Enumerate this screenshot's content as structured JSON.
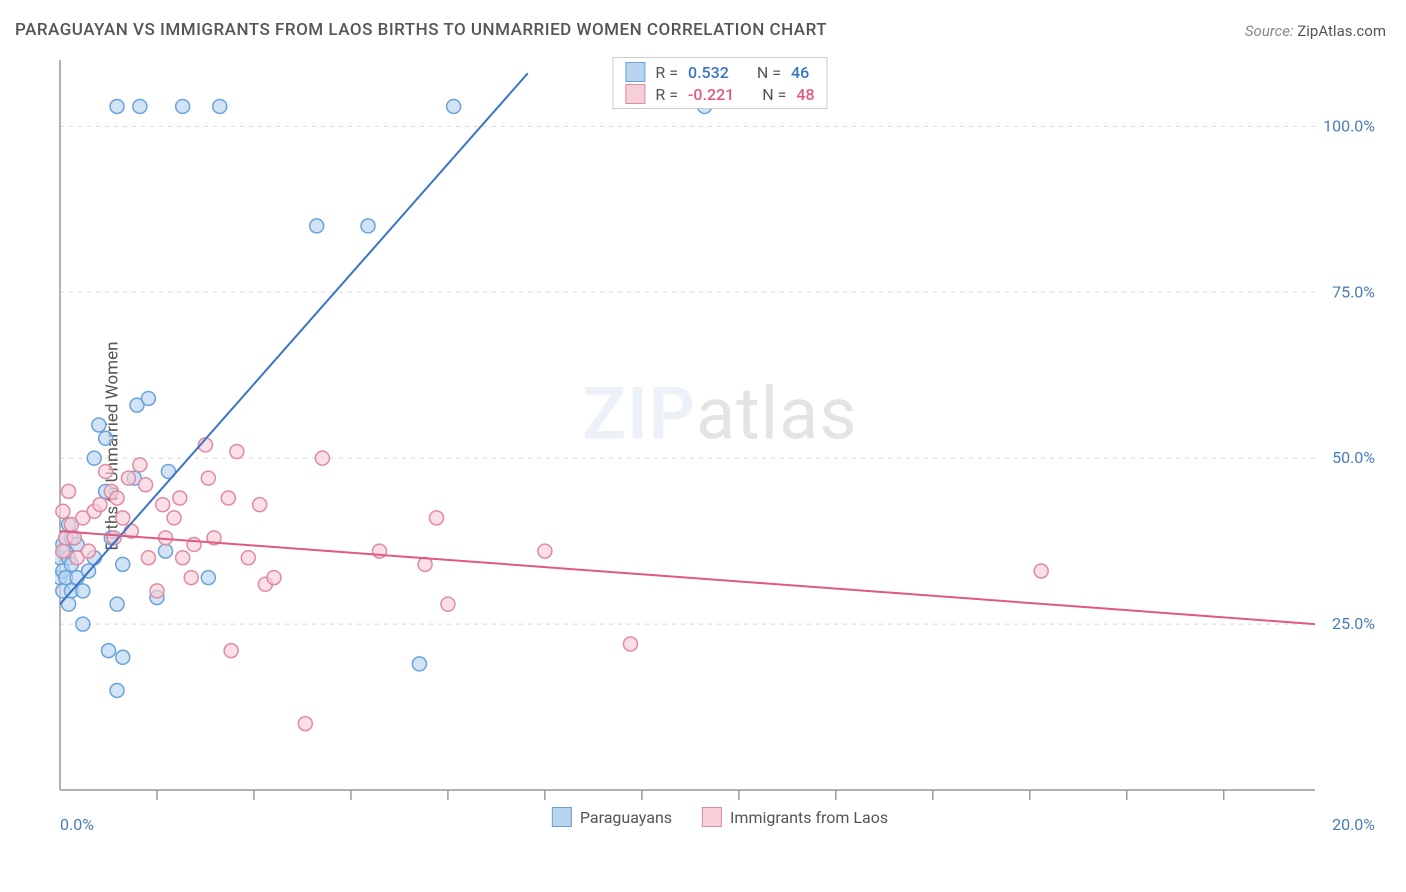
{
  "title": "PARAGUAYAN VS IMMIGRANTS FROM LAOS BIRTHS TO UNMARRIED WOMEN CORRELATION CHART",
  "source_label": "Source:",
  "source_value": "ZipAtlas.com",
  "ylabel": "Births to Unmarried Women",
  "watermark_a": "ZIP",
  "watermark_b": "atlas",
  "chart": {
    "type": "scatter",
    "xlim": [
      0,
      22
    ],
    "ylim": [
      0,
      110
    ],
    "ytick_values": [
      25,
      50,
      75,
      100
    ],
    "ytick_labels": [
      "25.0%",
      "50.0%",
      "75.0%",
      "100.0%"
    ],
    "x_origin_label": "0.0%",
    "x_end_label": "20.0%",
    "xtick_positions": [
      1.7,
      3.4,
      5.1,
      6.8,
      8.5,
      10.2,
      11.9,
      13.6,
      15.3,
      17.0,
      18.7,
      20.4
    ],
    "grid_color": "#d8d8d8",
    "axis_color": "#999999",
    "tick_label_color": "#4a7db8",
    "tick_label_fontsize": 16,
    "background_color": "#ffffff",
    "series": [
      {
        "name": "Paraguayans",
        "color_fill": "#b8d4ef",
        "color_stroke": "#6aa3d9",
        "line_color": "#3a74c4",
        "r_label": "R =",
        "r_value": "0.532",
        "n_label": "N =",
        "n_value": "46",
        "regression": {
          "x1": 0,
          "y1": 28,
          "x2": 8.2,
          "y2": 108
        },
        "points": [
          [
            0.0,
            35
          ],
          [
            0.0,
            32
          ],
          [
            0.05,
            37
          ],
          [
            0.05,
            33
          ],
          [
            0.05,
            30
          ],
          [
            0.1,
            38
          ],
          [
            0.1,
            36
          ],
          [
            0.1,
            32
          ],
          [
            0.15,
            40
          ],
          [
            0.15,
            35
          ],
          [
            0.15,
            28
          ],
          [
            0.2,
            38
          ],
          [
            0.2,
            34
          ],
          [
            0.2,
            30
          ],
          [
            0.3,
            37
          ],
          [
            0.3,
            32
          ],
          [
            0.4,
            30
          ],
          [
            0.4,
            25
          ],
          [
            0.5,
            33
          ],
          [
            0.6,
            50
          ],
          [
            0.6,
            35
          ],
          [
            0.68,
            55
          ],
          [
            0.8,
            53
          ],
          [
            0.8,
            45
          ],
          [
            0.85,
            21
          ],
          [
            0.9,
            38
          ],
          [
            1.0,
            28
          ],
          [
            1.0,
            103
          ],
          [
            1.0,
            15
          ],
          [
            1.1,
            34
          ],
          [
            1.1,
            20
          ],
          [
            1.3,
            47
          ],
          [
            1.35,
            58
          ],
          [
            1.4,
            103
          ],
          [
            1.55,
            59
          ],
          [
            1.7,
            29
          ],
          [
            1.85,
            36
          ],
          [
            1.9,
            48
          ],
          [
            2.15,
            103
          ],
          [
            2.6,
            32
          ],
          [
            2.8,
            103
          ],
          [
            4.5,
            85
          ],
          [
            5.4,
            85
          ],
          [
            6.3,
            19
          ],
          [
            6.9,
            103
          ],
          [
            11.3,
            103
          ]
        ]
      },
      {
        "name": "Immigrants from Laos",
        "color_fill": "#f7cfd9",
        "color_stroke": "#e08aa3",
        "line_color": "#e05a7e",
        "r_label": "R =",
        "r_value": "-0.221",
        "n_label": "N =",
        "n_value": "48",
        "regression": {
          "x1": 0,
          "y1": 39,
          "x2": 22,
          "y2": 25
        },
        "points": [
          [
            0.05,
            42
          ],
          [
            0.05,
            36
          ],
          [
            0.1,
            38
          ],
          [
            0.15,
            45
          ],
          [
            0.2,
            40
          ],
          [
            0.25,
            38
          ],
          [
            0.3,
            35
          ],
          [
            0.4,
            41
          ],
          [
            0.5,
            36
          ],
          [
            0.6,
            42
          ],
          [
            0.7,
            43
          ],
          [
            0.8,
            48
          ],
          [
            0.9,
            45
          ],
          [
            0.95,
            38
          ],
          [
            1.0,
            44
          ],
          [
            1.1,
            41
          ],
          [
            1.2,
            47
          ],
          [
            1.25,
            39
          ],
          [
            1.4,
            49
          ],
          [
            1.5,
            46
          ],
          [
            1.55,
            35
          ],
          [
            1.7,
            30
          ],
          [
            1.8,
            43
          ],
          [
            1.85,
            38
          ],
          [
            2.0,
            41
          ],
          [
            2.1,
            44
          ],
          [
            2.15,
            35
          ],
          [
            2.3,
            32
          ],
          [
            2.35,
            37
          ],
          [
            2.55,
            52
          ],
          [
            2.6,
            47
          ],
          [
            2.7,
            38
          ],
          [
            2.95,
            44
          ],
          [
            3.0,
            21
          ],
          [
            3.1,
            51
          ],
          [
            3.3,
            35
          ],
          [
            3.5,
            43
          ],
          [
            3.6,
            31
          ],
          [
            3.75,
            32
          ],
          [
            4.3,
            10
          ],
          [
            4.6,
            50
          ],
          [
            5.6,
            36
          ],
          [
            6.4,
            34
          ],
          [
            6.6,
            41
          ],
          [
            6.8,
            28
          ],
          [
            8.5,
            36
          ],
          [
            10.0,
            22
          ],
          [
            17.2,
            33
          ]
        ]
      }
    ],
    "marker_radius": 7,
    "marker_opacity": 0.65
  }
}
